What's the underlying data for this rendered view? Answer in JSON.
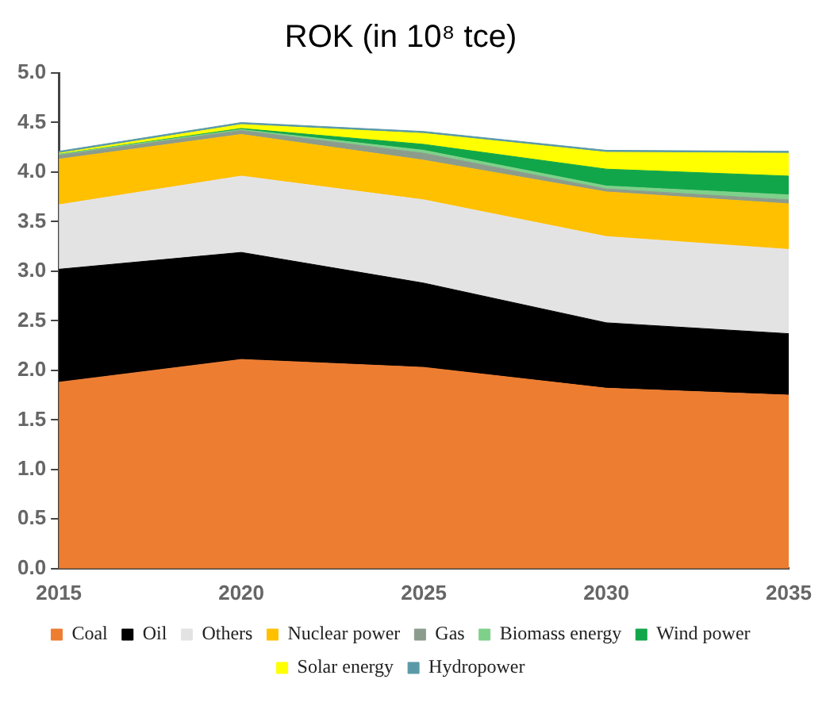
{
  "chart_data": {
    "type": "area",
    "stacked": true,
    "title": "ROK (in 10⁸ tce)",
    "x": [
      2015,
      2020,
      2025,
      2030,
      2035
    ],
    "xlim": [
      2015,
      2035
    ],
    "xticks": [
      2015,
      2020,
      2025,
      2030,
      2035
    ],
    "ylim": [
      0,
      5
    ],
    "yticks": [
      {
        "value": 0,
        "label": "0.0"
      },
      {
        "value": 0.5,
        "label": "0.5"
      },
      {
        "value": 1,
        "label": "1.0"
      },
      {
        "value": 1.5,
        "label": "1.5"
      },
      {
        "value": 2,
        "label": "2.0"
      },
      {
        "value": 2.5,
        "label": "2.5"
      },
      {
        "value": 3,
        "label": "3.0"
      },
      {
        "value": 3.5,
        "label": "3.5"
      },
      {
        "value": 4,
        "label": "4.0"
      },
      {
        "value": 4.5,
        "label": "4.5"
      },
      {
        "value": 5,
        "label": "5.0"
      }
    ],
    "grid": false,
    "legend": "bottom",
    "series": [
      {
        "name": "Coal",
        "color": "#ed7d31",
        "values": [
          1.88,
          2.11,
          2.03,
          1.82,
          1.75
        ]
      },
      {
        "name": "Oil",
        "color": "#000000",
        "values": [
          1.14,
          1.08,
          0.85,
          0.66,
          0.62
        ]
      },
      {
        "name": "Others",
        "color": "#e4e3e4",
        "values": [
          0.65,
          0.77,
          0.84,
          0.87,
          0.85
        ]
      },
      {
        "name": "Nuclear power",
        "color": "#ffc000",
        "values": [
          0.46,
          0.42,
          0.4,
          0.45,
          0.46
        ]
      },
      {
        "name": "Gas",
        "color": "#8c9c8c",
        "values": [
          0.04,
          0.04,
          0.07,
          0.03,
          0.04
        ]
      },
      {
        "name": "Biomass energy",
        "color": "#7fd08a",
        "values": [
          0.01,
          0.01,
          0.03,
          0.03,
          0.05
        ]
      },
      {
        "name": "Wind power",
        "color": "#12a64a",
        "values": [
          0,
          0.01,
          0.06,
          0.17,
          0.19
        ]
      },
      {
        "name": "Solar energy",
        "color": "#ffff00",
        "values": [
          0.01,
          0.04,
          0.11,
          0.17,
          0.23
        ]
      },
      {
        "name": "Hydropower",
        "color": "#5a9aa8",
        "values": [
          0.02,
          0.02,
          0.02,
          0.02,
          0.02
        ]
      }
    ]
  }
}
